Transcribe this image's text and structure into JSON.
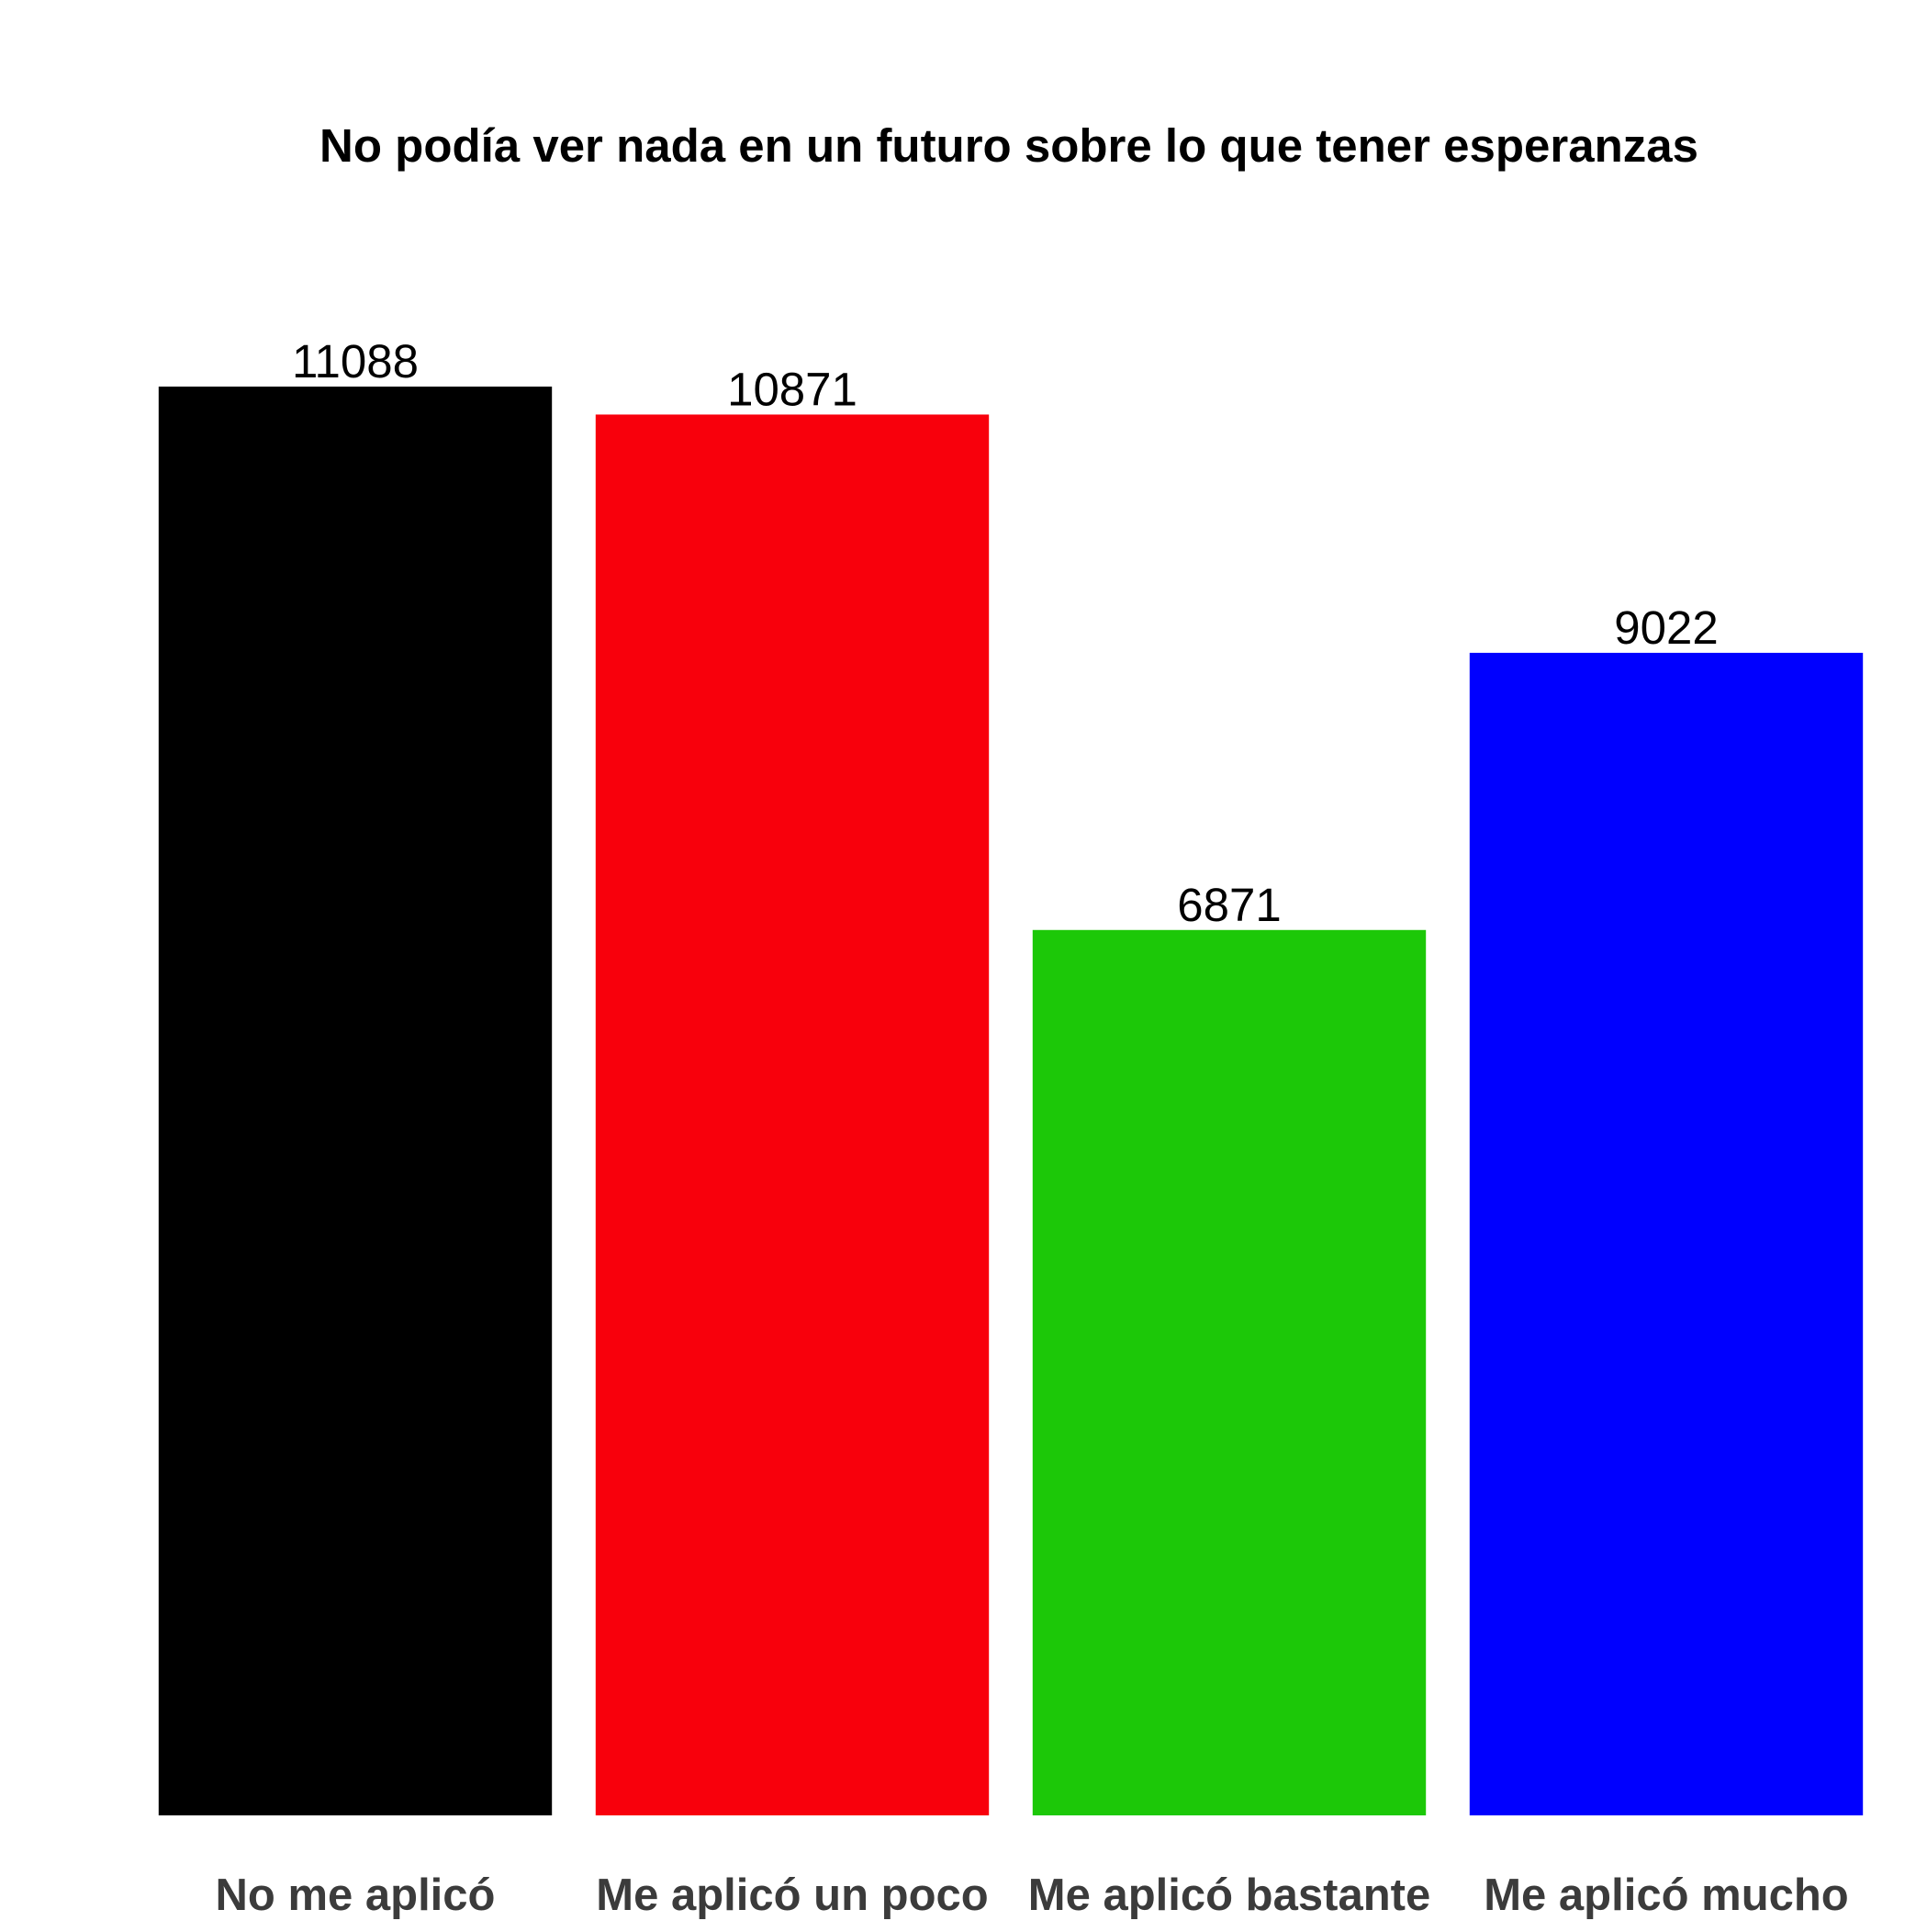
{
  "chart_data": {
    "type": "bar",
    "title": "No podía ver nada en un futuro sobre lo que tener esperanzas",
    "categories": [
      "No me aplicó",
      "Me aplicó un poco",
      "Me aplicó bastante",
      "Me aplicó mucho"
    ],
    "values": [
      11088,
      10871,
      6871,
      9022
    ],
    "data_labels": [
      "11088",
      "10871",
      "6871",
      "9022"
    ],
    "colors": [
      "#000000",
      "#f8000c",
      "#1cc808",
      "#0000ff"
    ],
    "xlabel": "",
    "ylabel": "",
    "ylim": [
      0,
      11088
    ],
    "grid": false,
    "legend": "none"
  }
}
